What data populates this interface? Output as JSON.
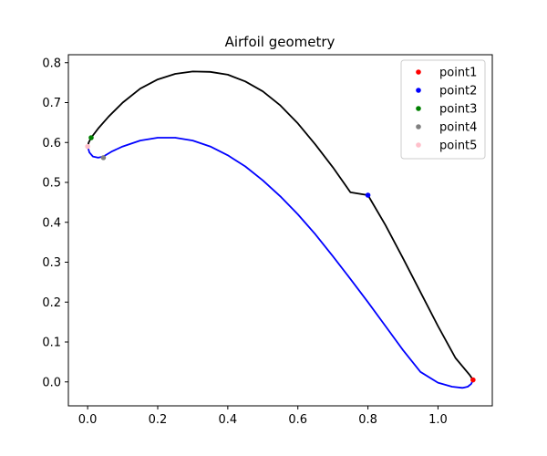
{
  "chart_data": {
    "type": "line",
    "title": "Airfoil geometry",
    "xlabel": "",
    "ylabel": "",
    "xlim": [
      -0.055,
      1.155
    ],
    "ylim": [
      -0.06,
      0.82
    ],
    "xticks": [
      0.0,
      0.2,
      0.4,
      0.6,
      0.8,
      1.0
    ],
    "xtick_labels": [
      "0.0",
      "0.2",
      "0.4",
      "0.6",
      "0.8",
      "1.0"
    ],
    "yticks": [
      0.0,
      0.1,
      0.2,
      0.3,
      0.4,
      0.5,
      0.6,
      0.7,
      0.8
    ],
    "ytick_labels": [
      "0.0",
      "0.1",
      "0.2",
      "0.3",
      "0.4",
      "0.5",
      "0.6",
      "0.7",
      "0.8"
    ],
    "grid": false,
    "legend_position": "top-right",
    "curves": [
      {
        "color": "#000000",
        "x": [
          0.0,
          0.003,
          0.01,
          0.03,
          0.06,
          0.1,
          0.15,
          0.2,
          0.25,
          0.3,
          0.35,
          0.4,
          0.45,
          0.5,
          0.55,
          0.6,
          0.65,
          0.7,
          0.75,
          0.8,
          0.85,
          0.9,
          0.95,
          1.0,
          1.05,
          1.09,
          1.1
        ],
        "y": [
          0.59,
          0.6,
          0.612,
          0.635,
          0.665,
          0.7,
          0.735,
          0.758,
          0.772,
          0.778,
          0.777,
          0.77,
          0.753,
          0.728,
          0.693,
          0.648,
          0.595,
          0.538,
          0.475,
          0.468,
          0.393,
          0.31,
          0.225,
          0.14,
          0.06,
          0.018,
          0.005
        ]
      },
      {
        "color": "#0000ff",
        "x": [
          0.0,
          0.005,
          0.015,
          0.03,
          0.045,
          0.07,
          0.1,
          0.15,
          0.2,
          0.25,
          0.3,
          0.35,
          0.4,
          0.45,
          0.5,
          0.55,
          0.6,
          0.65,
          0.7,
          0.75,
          0.8,
          0.85,
          0.9,
          0.95,
          1.0,
          1.04,
          1.07,
          1.085,
          1.095,
          1.1
        ],
        "y": [
          0.59,
          0.575,
          0.565,
          0.562,
          0.565,
          0.578,
          0.59,
          0.605,
          0.612,
          0.612,
          0.605,
          0.59,
          0.568,
          0.54,
          0.505,
          0.465,
          0.42,
          0.37,
          0.315,
          0.258,
          0.2,
          0.14,
          0.08,
          0.025,
          -0.002,
          -0.012,
          -0.015,
          -0.012,
          -0.005,
          0.005
        ]
      }
    ],
    "series": [
      {
        "name": "point1",
        "color": "#ff0000",
        "x": [
          1.1
        ],
        "y": [
          0.005
        ]
      },
      {
        "name": "point2",
        "color": "#0000ff",
        "x": [
          0.8
        ],
        "y": [
          0.468
        ]
      },
      {
        "name": "point3",
        "color": "#008000",
        "x": [
          0.01
        ],
        "y": [
          0.612
        ]
      },
      {
        "name": "point4",
        "color": "#808080",
        "x": [
          0.045
        ],
        "y": [
          0.562
        ]
      },
      {
        "name": "point5",
        "color": "#ffc0cb",
        "x": [
          0.0
        ],
        "y": [
          0.59
        ]
      }
    ]
  }
}
